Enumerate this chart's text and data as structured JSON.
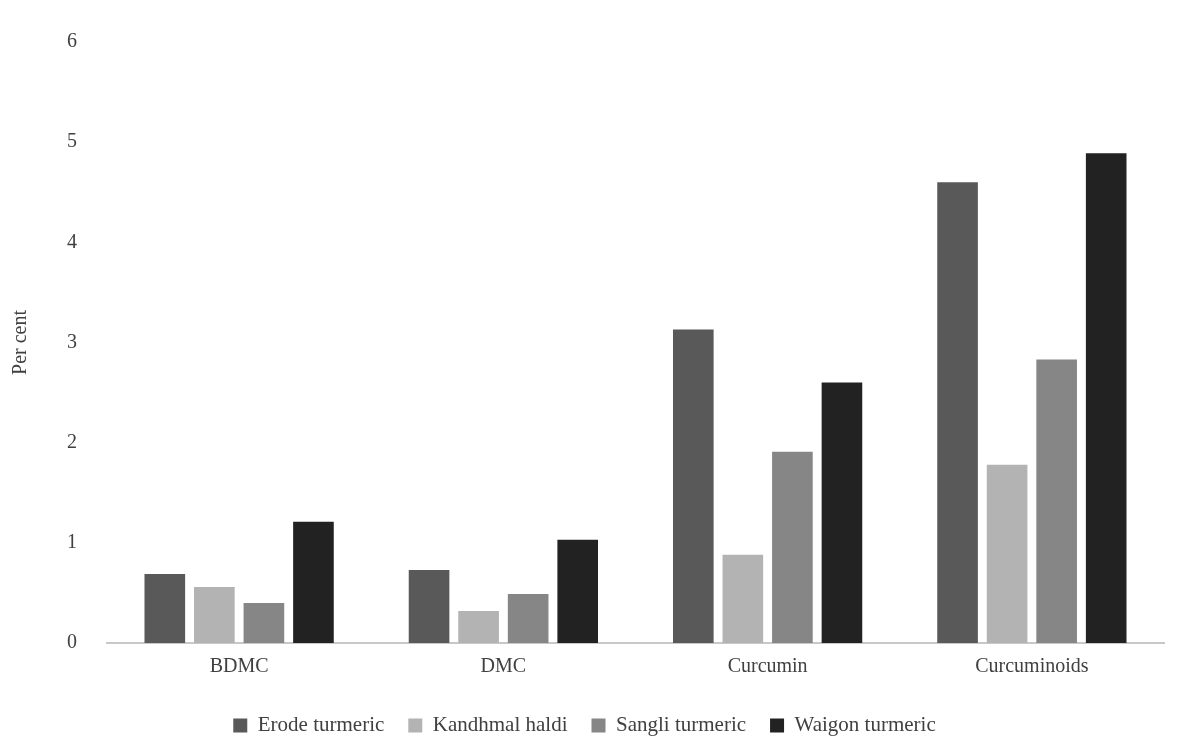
{
  "chart_data": {
    "type": "bar",
    "ylabel": "Per cent",
    "categories": [
      "BDMC",
      "DMC",
      "Curcumin",
      "Curcuminoids"
    ],
    "series": [
      {
        "name": "Erode turmeric",
        "color": "#595959",
        "values": [
          0.69,
          0.73,
          3.13,
          4.6
        ]
      },
      {
        "name": "Kandhmal haldi",
        "color": "#b3b3b3",
        "values": [
          0.56,
          0.32,
          0.88,
          1.78
        ]
      },
      {
        "name": "Sangli turmeric",
        "color": "#868686",
        "values": [
          0.4,
          0.49,
          1.91,
          2.83
        ]
      },
      {
        "name": "Waigon turmeric",
        "color": "#222222",
        "values": [
          1.21,
          1.03,
          2.6,
          4.89
        ]
      }
    ],
    "ylim": [
      0,
      6
    ],
    "yticks": [
      0,
      1,
      2,
      3,
      4,
      5,
      6
    ],
    "grid": false,
    "legend": "bottom"
  }
}
